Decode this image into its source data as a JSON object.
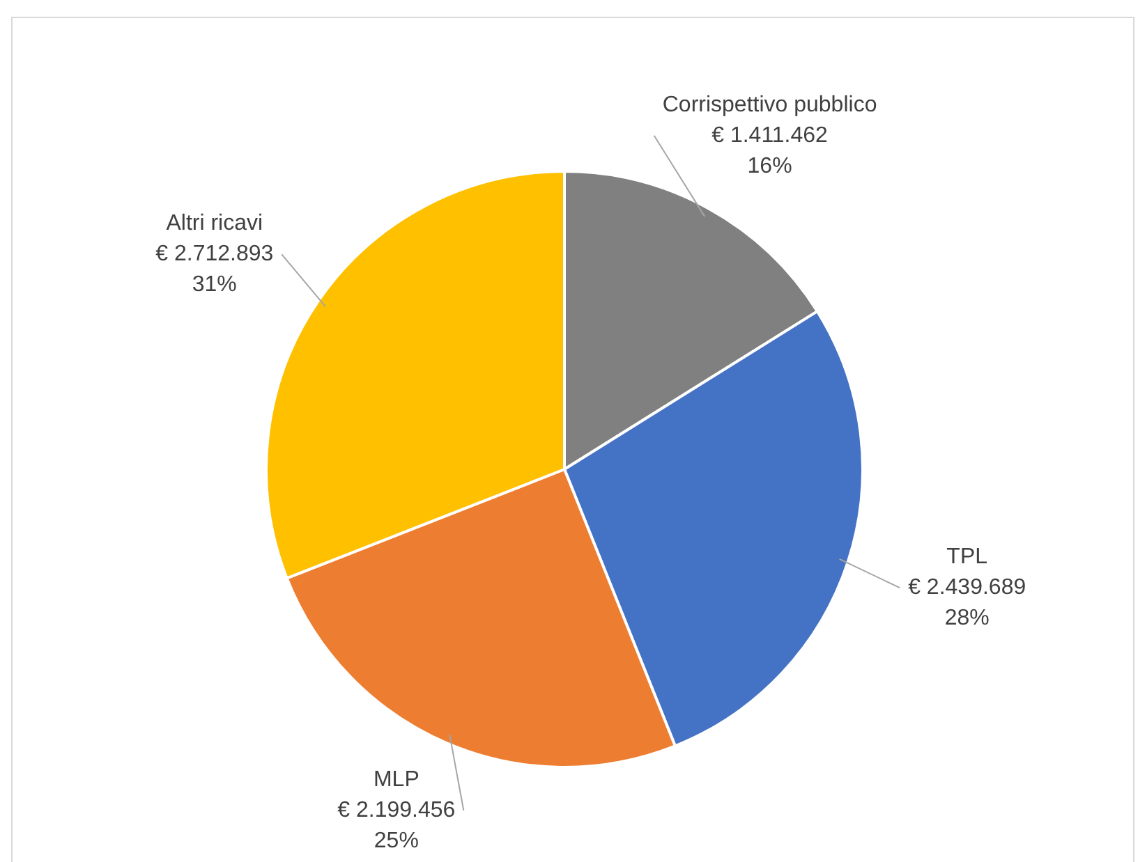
{
  "chart_data": {
    "type": "pie",
    "categories": [
      "Corrispettivo pubblico",
      "TPL",
      "MLP",
      "Altri ricavi"
    ],
    "values": [
      1411462,
      2439689,
      2199456,
      2712893
    ],
    "colors": [
      "#808080",
      "#4472c4",
      "#ed7d31",
      "#ffc000"
    ],
    "value_labels": [
      "€ 1.411.462\n16%",
      "€ 2.439.689\n28%",
      "€ 2.199.456\n25%",
      "€ 2.712.893\n31%"
    ],
    "legend": false
  }
}
